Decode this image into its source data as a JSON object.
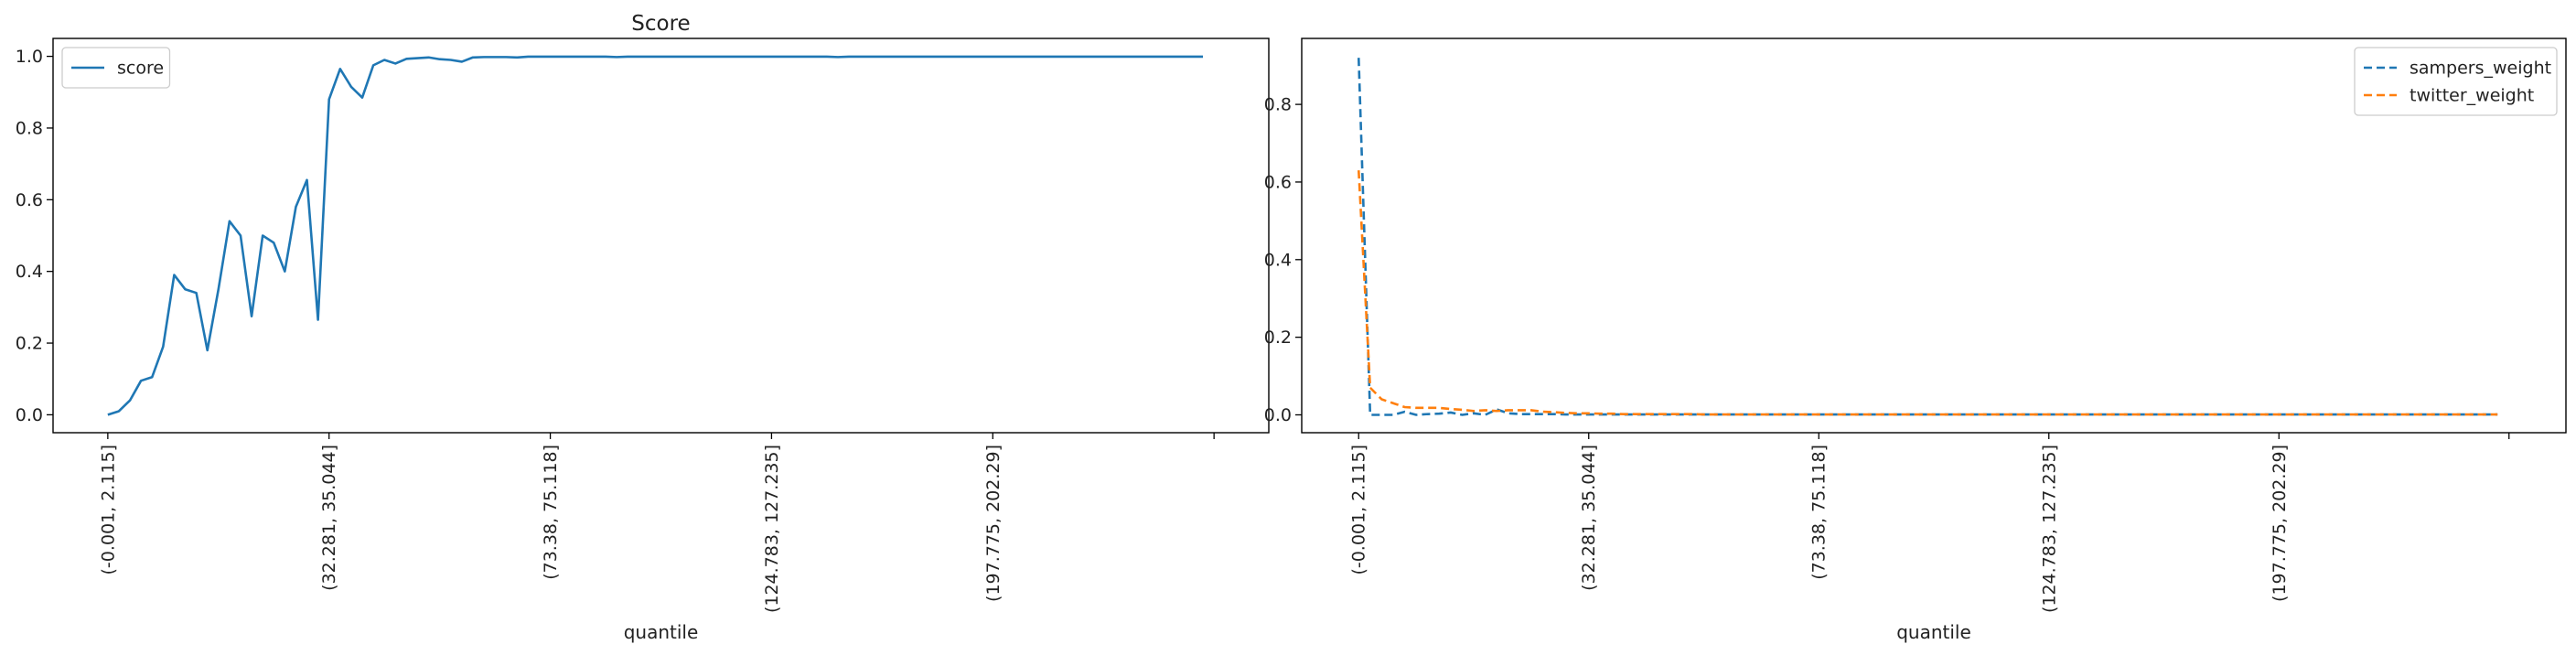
{
  "chart_data": [
    {
      "type": "line",
      "title": "Score",
      "xlabel": "quantile",
      "ylabel": "",
      "ylim": [
        -0.05,
        1.05
      ],
      "yticks": [
        0.0,
        0.2,
        0.4,
        0.6,
        0.8,
        1.0
      ],
      "ytick_labels": [
        "0.0",
        "0.2",
        "0.4",
        "0.6",
        "0.8",
        "1.0"
      ],
      "xtick_labels": [
        "(-0.001, 2.115]",
        "(32.281, 35.044]",
        "(73.38, 75.118]",
        "(124.783, 127.235]",
        "(197.775, 202.29]",
        ""
      ],
      "xtick_positions": [
        0,
        20,
        40,
        60,
        80,
        100
      ],
      "xlim": [
        -4.95,
        104.95
      ],
      "legend": "upper-left",
      "series": [
        {
          "name": "score",
          "color": "#1f77b4",
          "style": "solid",
          "values": [
            0.0,
            0.01,
            0.04,
            0.095,
            0.105,
            0.19,
            0.39,
            0.35,
            0.34,
            0.18,
            0.35,
            0.54,
            0.5,
            0.275,
            0.5,
            0.48,
            0.4,
            0.58,
            0.655,
            0.265,
            0.88,
            0.965,
            0.915,
            0.885,
            0.975,
            0.99,
            0.98,
            0.993,
            0.995,
            0.997,
            0.992,
            0.99,
            0.985,
            0.997,
            0.998,
            0.998,
            0.998,
            0.997,
            0.999,
            0.999,
            0.999,
            0.999,
            0.999,
            0.999,
            0.999,
            0.999,
            0.998,
            0.999,
            0.999,
            0.999,
            0.999,
            0.999,
            0.999,
            0.999,
            0.999,
            0.999,
            0.999,
            0.999,
            0.999,
            0.999,
            0.999,
            0.999,
            0.999,
            0.999,
            0.999,
            0.999,
            0.998,
            0.999,
            0.999,
            0.999,
            0.999,
            0.999,
            0.999,
            0.999,
            0.999,
            0.999,
            0.999,
            0.999,
            0.999,
            0.999,
            0.999,
            0.999,
            0.999,
            0.999,
            0.999,
            0.999,
            0.999,
            0.999,
            0.999,
            0.999,
            0.999,
            0.999,
            0.999,
            0.999,
            0.999,
            0.999,
            0.999,
            0.999,
            0.999,
            0.999
          ]
        }
      ]
    },
    {
      "type": "line",
      "title": "",
      "xlabel": "quantile",
      "ylabel": "",
      "ylim": [
        -0.046,
        0.97
      ],
      "yticks": [
        0.0,
        0.2,
        0.4,
        0.6,
        0.8
      ],
      "ytick_labels": [
        "0.0",
        "0.2",
        "0.4",
        "0.6",
        "0.8"
      ],
      "xtick_labels": [
        "(-0.001, 2.115]",
        "(32.281, 35.044]",
        "(73.38, 75.118]",
        "(124.783, 127.235]",
        "(197.775, 202.29]",
        ""
      ],
      "xtick_positions": [
        0,
        20,
        40,
        60,
        80,
        100
      ],
      "xlim": [
        -4.95,
        104.95
      ],
      "legend": "upper-right",
      "series": [
        {
          "name": "sampers_weight",
          "color": "#1f77b4",
          "style": "dashed",
          "values": [
            0.92,
            0.0,
            0.0,
            0.0,
            0.008,
            0.0,
            0.002,
            0.003,
            0.006,
            0.0,
            0.004,
            0.0,
            0.014,
            0.004,
            0.002,
            0.002,
            0.002,
            0.002,
            0.001,
            0.001,
            0.001,
            0.001,
            0.001,
            0.001,
            0.001,
            0.001,
            0.001,
            0.001,
            0.001,
            0.001,
            0.001,
            0.001,
            0.001,
            0.001,
            0.001,
            0.001,
            0.001,
            0.001,
            0.001,
            0.001,
            0.001,
            0.001,
            0.001,
            0.001,
            0.001,
            0.001,
            0.001,
            0.001,
            0.001,
            0.001,
            0.001,
            0.001,
            0.001,
            0.001,
            0.001,
            0.001,
            0.001,
            0.001,
            0.001,
            0.001,
            0.001,
            0.001,
            0.001,
            0.001,
            0.001,
            0.001,
            0.001,
            0.001,
            0.001,
            0.001,
            0.001,
            0.001,
            0.001,
            0.001,
            0.001,
            0.001,
            0.001,
            0.001,
            0.001,
            0.001,
            0.001,
            0.001,
            0.001,
            0.001,
            0.001,
            0.001,
            0.001,
            0.001,
            0.001,
            0.001,
            0.001,
            0.001,
            0.001,
            0.001,
            0.001,
            0.001,
            0.001,
            0.001,
            0.001,
            0.001
          ]
        },
        {
          "name": "twitter_weight",
          "color": "#ff7f0e",
          "style": "dashed",
          "values": [
            0.63,
            0.07,
            0.04,
            0.03,
            0.02,
            0.018,
            0.018,
            0.018,
            0.015,
            0.013,
            0.01,
            0.012,
            0.01,
            0.012,
            0.012,
            0.012,
            0.008,
            0.007,
            0.005,
            0.004,
            0.004,
            0.003,
            0.003,
            0.002,
            0.002,
            0.002,
            0.002,
            0.002,
            0.002,
            0.002,
            0.001,
            0.001,
            0.001,
            0.001,
            0.001,
            0.001,
            0.001,
            0.001,
            0.001,
            0.001,
            0.001,
            0.001,
            0.001,
            0.001,
            0.001,
            0.001,
            0.001,
            0.001,
            0.001,
            0.001,
            0.001,
            0.001,
            0.001,
            0.001,
            0.001,
            0.001,
            0.001,
            0.001,
            0.001,
            0.001,
            0.001,
            0.001,
            0.001,
            0.001,
            0.001,
            0.001,
            0.001,
            0.001,
            0.001,
            0.001,
            0.001,
            0.001,
            0.001,
            0.001,
            0.001,
            0.001,
            0.001,
            0.001,
            0.001,
            0.001,
            0.001,
            0.001,
            0.001,
            0.001,
            0.001,
            0.001,
            0.001,
            0.001,
            0.001,
            0.001,
            0.001,
            0.001,
            0.001,
            0.001,
            0.001,
            0.001,
            0.001,
            0.001,
            0.001,
            0.001
          ]
        }
      ]
    }
  ]
}
